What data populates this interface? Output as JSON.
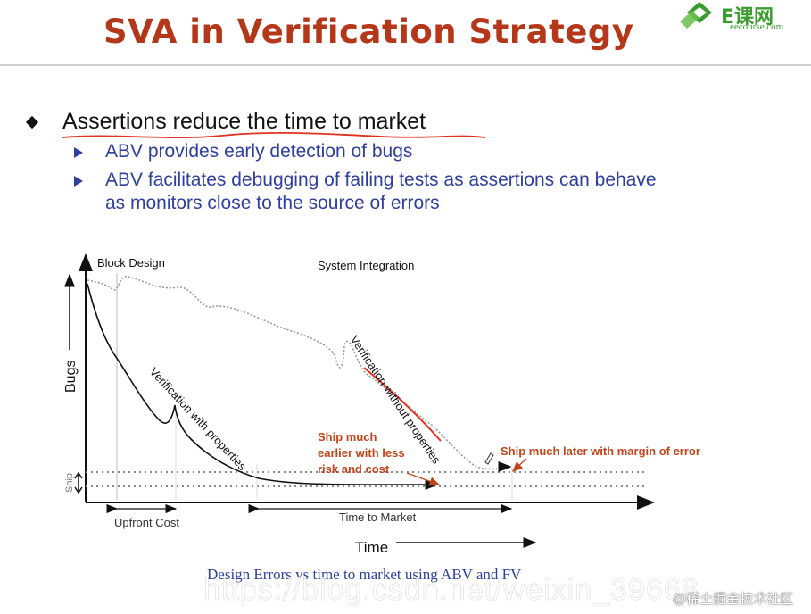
{
  "slide": {
    "title": "SVA in Verification Strategy",
    "logo": {
      "text": "E课网",
      "sub": "eecourse.com",
      "accent": "#3a9c2e"
    },
    "bullet": "Assertions reduce the time to market",
    "sub_bullets": [
      "ABV provides early detection of bugs",
      "ABV facilitates debugging of failing tests as assertions can behave",
      "as monitors close to the source of errors"
    ],
    "caption": "Design Errors vs time to market using ABV and FV",
    "watermark": "https://blog.csdn.net/weixin_39668...",
    "watermark2": "@稀土掘金技术社区"
  },
  "diagram": {
    "y_axis_label": "Bugs",
    "x_axis_label": "Time",
    "ship_label": "Ship",
    "phase_block": "Block Design",
    "phase_system": "System Integration",
    "curve_with": "Verification with properties",
    "curve_without": "Verification without properties",
    "upfront_cost": "Upfront Cost",
    "time_to_market": "Time to Market",
    "annotation_early": [
      "Ship much",
      "earlier with less",
      "risk and cost"
    ],
    "annotation_late": "Ship much later with margin of error",
    "colors": {
      "annotation": "#c0451b",
      "highlight": "#e0321e",
      "curve": "#111111",
      "dotted": "#888888"
    }
  }
}
